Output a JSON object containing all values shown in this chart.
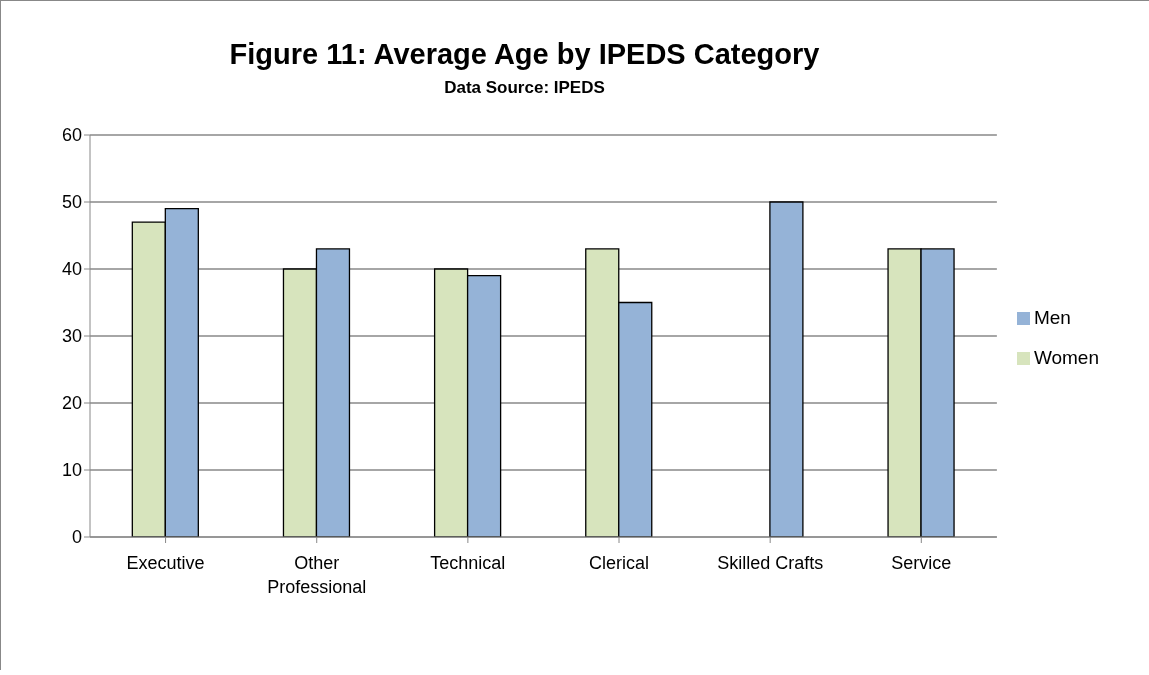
{
  "chart_data": {
    "type": "bar",
    "title": "Figure 11: Average Age by IPEDS Category",
    "subtitle": "Data Source: IPEDS",
    "categories": [
      "Executive",
      "Other Professional",
      "Technical",
      "Clerical",
      "Skilled Crafts",
      "Service"
    ],
    "series": [
      {
        "name": "Women",
        "color": "#d7e4bd",
        "values": [
          47,
          40,
          40,
          43,
          null,
          43
        ]
      },
      {
        "name": "Men",
        "color": "#95b3d7",
        "values": [
          49,
          43,
          39,
          35,
          50,
          43
        ]
      }
    ],
    "ylim": [
      0,
      60
    ],
    "yticks": [
      0,
      10,
      20,
      30,
      40,
      50,
      60
    ],
    "grid": "y",
    "legend": "right"
  }
}
